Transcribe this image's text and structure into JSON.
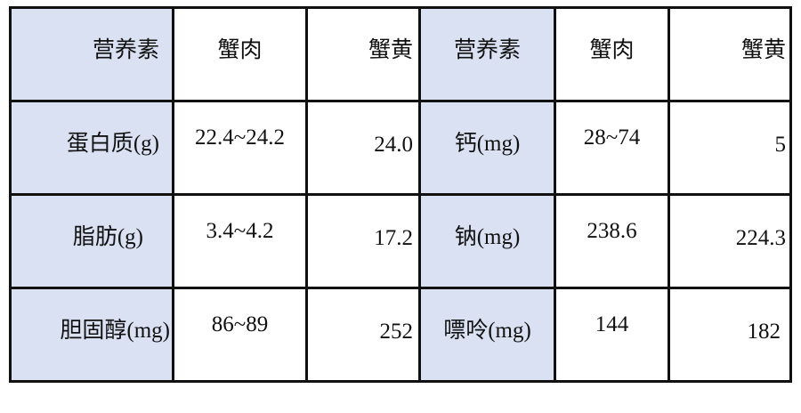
{
  "table": {
    "header": [
      "营养素",
      "蟹肉",
      "蟹黄",
      "营养素",
      "蟹肉",
      "蟹黄"
    ],
    "rows": [
      [
        "蛋白质(g)",
        "22.4~24.2",
        "24.0",
        "钙(mg)",
        "28~74",
        "5"
      ],
      [
        "脂肪(g)",
        "3.4~4.2",
        "17.2",
        "钠(mg)",
        "238.6",
        "224.3"
      ],
      [
        "胆固醇(mg)",
        "86~89",
        "252",
        "嘌呤(mg)",
        "144",
        "182"
      ]
    ],
    "label_fill_color": "#d9e1f2"
  }
}
